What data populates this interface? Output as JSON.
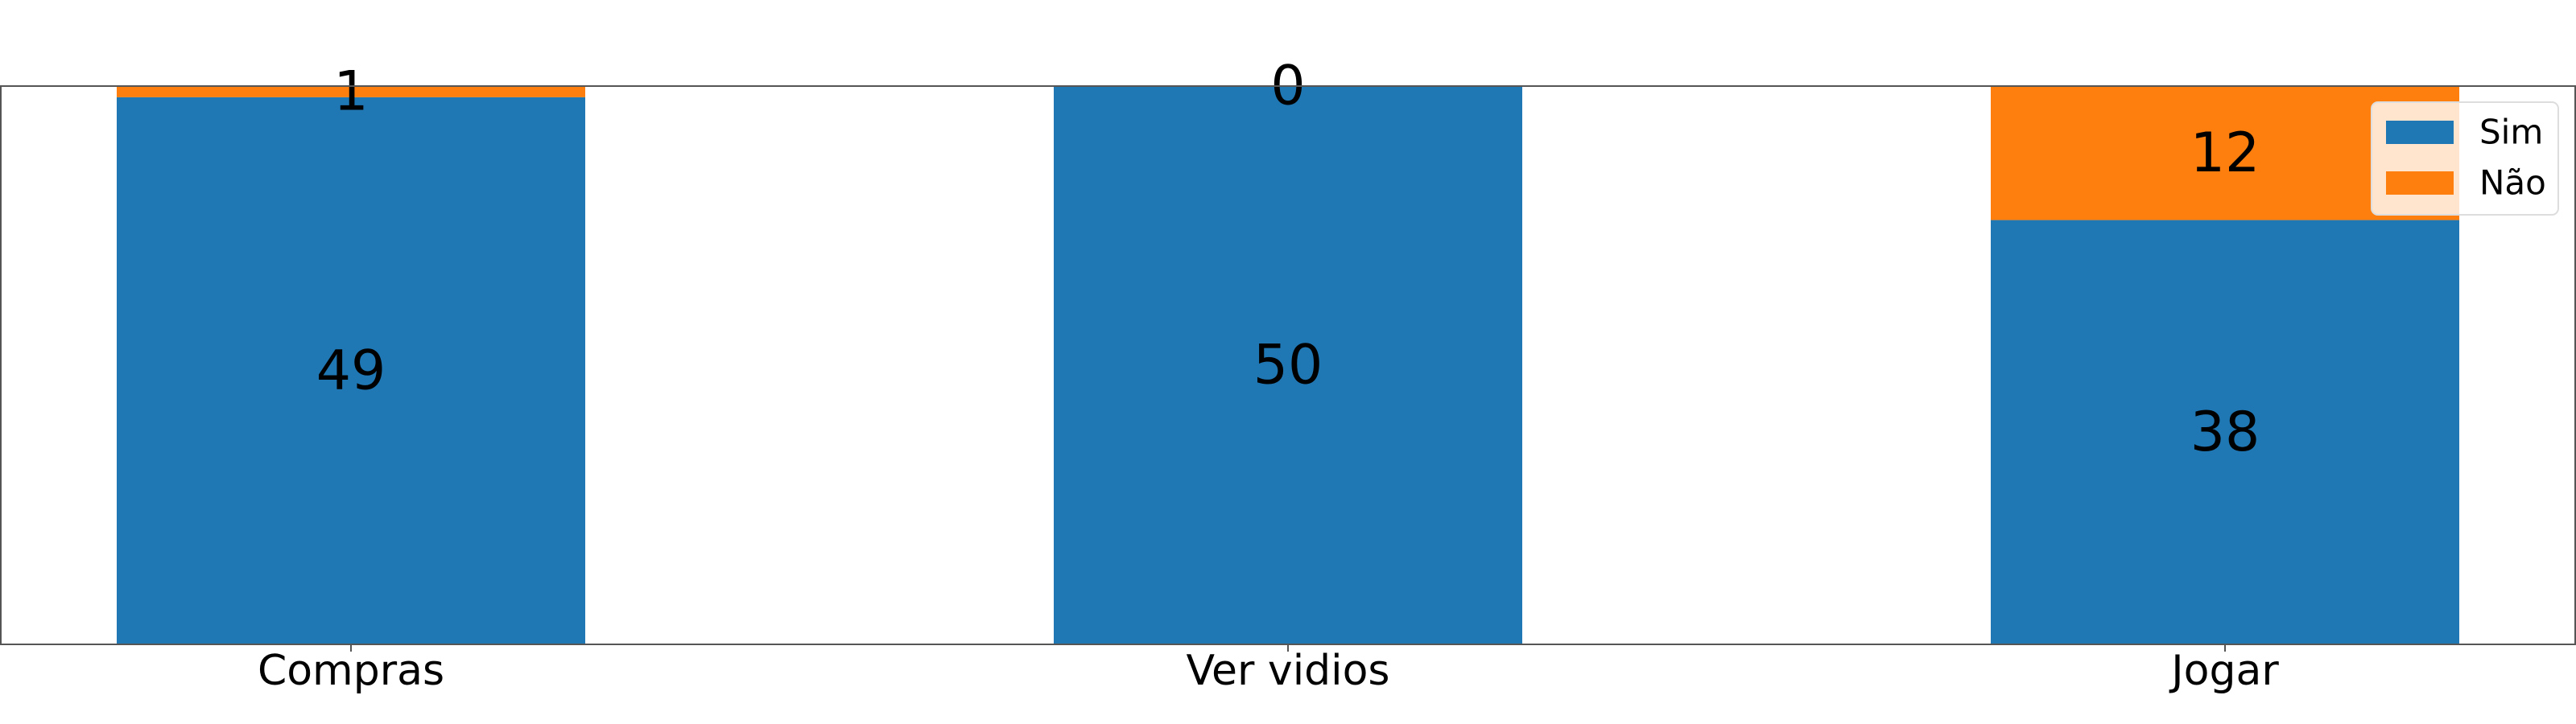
{
  "chart_data": {
    "type": "bar",
    "stacked": true,
    "categories": [
      "Compras",
      "Ver vidios",
      "Jogar"
    ],
    "series": [
      {
        "name": "Sim",
        "color": "#1f77b4",
        "values": [
          49,
          50,
          38
        ]
      },
      {
        "name": "Não",
        "color": "#ff7f0e",
        "values": [
          1,
          0,
          12
        ]
      }
    ],
    "title": "",
    "xlabel": "",
    "ylabel": "",
    "ylim": [
      0,
      50
    ],
    "grid": false,
    "legend_position": "top-right",
    "data_labels": true
  }
}
